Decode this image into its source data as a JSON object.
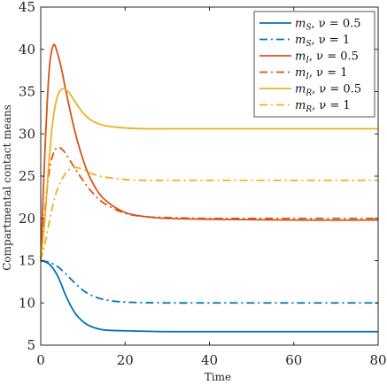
{
  "chart_data": {
    "type": "line",
    "title": "",
    "xlabel": "Time",
    "ylabel": "Compartmental contact means",
    "xlim": [
      0,
      80
    ],
    "ylim": [
      5,
      45
    ],
    "xticks": [
      "0",
      "20",
      "40",
      "60",
      "80"
    ],
    "yticks": [
      "5",
      "10",
      "15",
      "20",
      "25",
      "30",
      "35",
      "40",
      "45"
    ],
    "grid": false,
    "legend_position": "top-right",
    "series": [
      {
        "name": "mS, ν = 0.5",
        "label_main": "m",
        "label_sub": "S",
        "label_rest": ", ν = 0.5",
        "color": "#0072BD",
        "dash": "solid",
        "x": [
          0,
          2,
          4,
          6,
          8,
          10,
          12,
          15,
          20,
          30,
          40,
          60,
          80
        ],
        "y": [
          15,
          14.6,
          13.2,
          10.8,
          8.9,
          7.8,
          7.2,
          6.8,
          6.7,
          6.6,
          6.6,
          6.6,
          6.6
        ]
      },
      {
        "name": "mS, ν = 1",
        "label_main": "m",
        "label_sub": "S",
        "label_rest": ", ν = 1",
        "color": "#0072BD",
        "dash": "dashdot",
        "x": [
          0,
          2,
          4,
          6,
          8,
          10,
          12,
          15,
          20,
          30,
          40,
          60,
          80
        ],
        "y": [
          15,
          14.8,
          14.3,
          13.4,
          12.4,
          11.5,
          10.9,
          10.4,
          10.1,
          10.0,
          10.0,
          10.0,
          10.0
        ]
      },
      {
        "name": "mI, ν = 0.5",
        "label_main": "m",
        "label_sub": "I",
        "label_rest": ", ν = 0.5",
        "color": "#D95319",
        "dash": "solid",
        "x": [
          0,
          1,
          2,
          3,
          4,
          5,
          6,
          8,
          10,
          12,
          15,
          20,
          25,
          30,
          40,
          60,
          80
        ],
        "y": [
          15,
          28,
          37.5,
          40.5,
          39.5,
          37.5,
          35,
          30.5,
          27,
          24.5,
          22.3,
          20.7,
          20.2,
          20.0,
          19.9,
          19.8,
          19.8
        ]
      },
      {
        "name": "mI, ν = 1",
        "label_main": "m",
        "label_sub": "I",
        "label_rest": ", ν = 1",
        "color": "#D95319",
        "dash": "dashdot",
        "x": [
          0,
          1,
          2,
          3,
          4,
          5,
          6,
          8,
          10,
          12,
          15,
          20,
          25,
          30,
          40,
          60,
          80
        ],
        "y": [
          15,
          21,
          25.5,
          27.7,
          28.4,
          28.2,
          27.6,
          26,
          24.5,
          23.2,
          21.8,
          20.6,
          20.2,
          20.1,
          20.0,
          20.0,
          20.0
        ]
      },
      {
        "name": "mR, ν = 0.5",
        "label_main": "m",
        "label_sub": "R",
        "label_rest": ", ν = 0.5",
        "color": "#EDB120",
        "dash": "solid",
        "x": [
          0,
          1,
          2,
          3,
          4,
          5,
          6,
          7,
          8,
          10,
          12,
          15,
          20,
          25,
          30,
          40,
          60,
          80
        ],
        "y": [
          15,
          20,
          27,
          32,
          34.5,
          35.3,
          35.2,
          34.7,
          33.9,
          32.5,
          31.6,
          31.0,
          30.7,
          30.6,
          30.6,
          30.6,
          30.6,
          30.6
        ]
      },
      {
        "name": "mR, ν = 1",
        "label_main": "m",
        "label_sub": "R",
        "label_rest": ", ν = 1",
        "color": "#EDB120",
        "dash": "dashdot",
        "x": [
          0,
          1,
          2,
          3,
          4,
          6,
          8,
          10,
          12,
          15,
          20,
          25,
          30,
          40,
          60,
          80
        ],
        "y": [
          15,
          17,
          19.5,
          21.8,
          23.5,
          25.4,
          26.0,
          25.8,
          25.3,
          24.9,
          24.6,
          24.5,
          24.5,
          24.5,
          24.5,
          24.5
        ]
      }
    ]
  }
}
